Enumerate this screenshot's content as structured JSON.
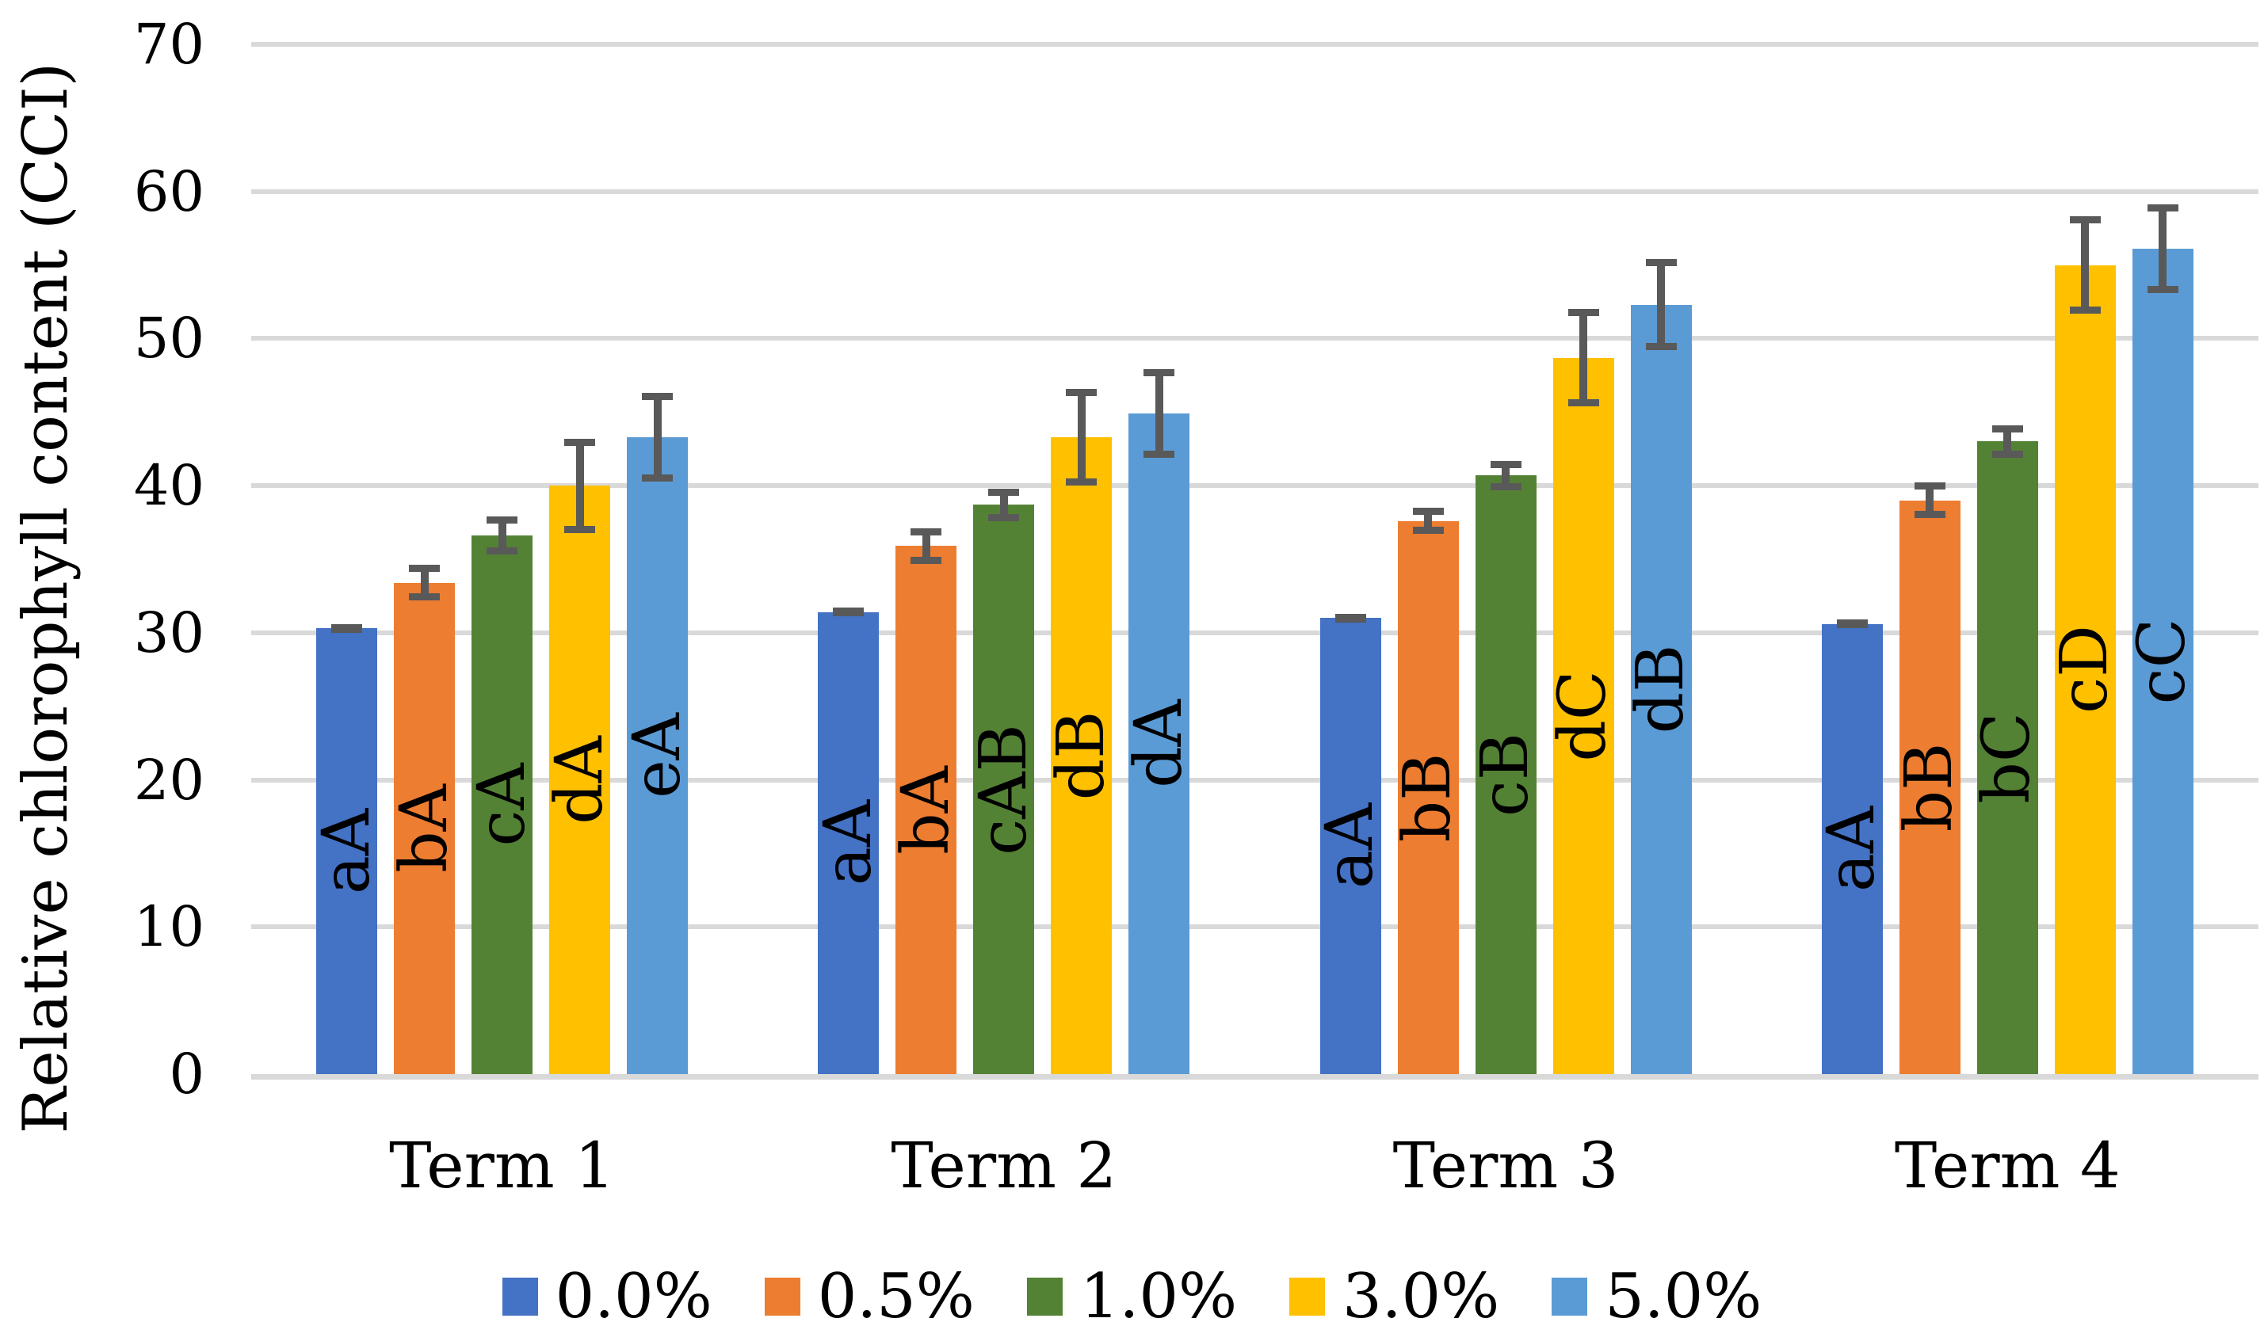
{
  "chart_data": {
    "type": "bar",
    "title": "",
    "xlabel": "",
    "ylabel": "Relative chlorophyll content (CCI)",
    "ylim": [
      0,
      70
    ],
    "yticks": [
      0,
      10,
      20,
      30,
      40,
      50,
      60,
      70
    ],
    "grid": true,
    "legend_position": "bottom",
    "categories": [
      "Term 1",
      "Term 2",
      "Term 3",
      "Term 4"
    ],
    "series": [
      {
        "name": "0.0%",
        "color": "#4472C4",
        "values": [
          30.3,
          31.4,
          31.0,
          30.6
        ],
        "errors": [
          0.3,
          0.3,
          0.3,
          0.3
        ],
        "bar_labels": [
          "aA",
          "aA",
          "aA",
          "aA"
        ]
      },
      {
        "name": "0.5%",
        "color": "#ED7D31",
        "values": [
          33.4,
          35.9,
          37.6,
          39.0
        ],
        "errors": [
          1.2,
          1.2,
          0.9,
          1.2
        ],
        "bar_labels": [
          "bA",
          "bA",
          "bB",
          "bB"
        ]
      },
      {
        "name": "1.0%",
        "color": "#548235",
        "values": [
          36.6,
          38.7,
          40.7,
          43.0
        ],
        "errors": [
          1.3,
          1.1,
          1.0,
          1.1
        ],
        "bar_labels": [
          "cA",
          "cAB",
          "cB",
          "bC"
        ]
      },
      {
        "name": "3.0%",
        "color": "#FFC000",
        "values": [
          40.0,
          43.3,
          48.7,
          55.0
        ],
        "errors": [
          3.2,
          3.3,
          3.3,
          3.3
        ],
        "bar_labels": [
          "dA",
          "dB",
          "dC",
          "cD"
        ]
      },
      {
        "name": "5.0%",
        "color": "#5B9BD5",
        "values": [
          43.3,
          44.9,
          52.3,
          56.1
        ],
        "errors": [
          3.0,
          3.0,
          3.1,
          3.0
        ],
        "bar_labels": [
          "eA",
          "dA",
          "dB",
          "cC"
        ]
      }
    ],
    "style": {
      "gridline_color": "#D9D9D9",
      "axis_line_color": "#D9D9D9",
      "error_bar_color": "#595959",
      "text_color": "#000000",
      "background": "#FFFFFF"
    }
  }
}
